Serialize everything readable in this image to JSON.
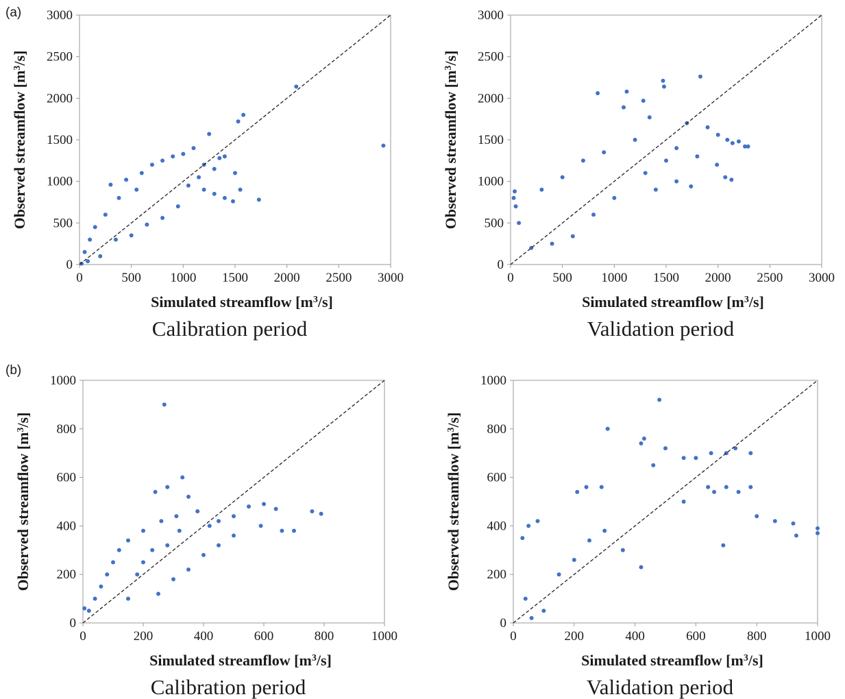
{
  "figure": {
    "groups": [
      {
        "label": "(a)"
      },
      {
        "label": "(b)"
      }
    ]
  },
  "colors": {
    "points": "#4472c4",
    "frame": "#9a9a9a",
    "diagonal": "#222222"
  },
  "chart_data": [
    {
      "type": "scatter",
      "group": "(a)",
      "period": "Calibration period",
      "xlabel": "Simulated streamflow [m³/s]",
      "ylabel": "Observed streamflow [m³/s]",
      "xlim": [
        0,
        3000
      ],
      "ylim": [
        0,
        3000
      ],
      "xticks": [
        0,
        500,
        1000,
        1500,
        2000,
        2500,
        3000
      ],
      "yticks": [
        0,
        500,
        1000,
        1500,
        2000,
        2500,
        3000
      ],
      "grid": false,
      "one_to_one_line": true,
      "points": [
        [
          2090,
          2140
        ],
        [
          1580,
          1800
        ],
        [
          1530,
          1720
        ],
        [
          2930,
          1430
        ],
        [
          1250,
          1570
        ],
        [
          1730,
          780
        ],
        [
          1550,
          900
        ],
        [
          1480,
          760
        ],
        [
          1350,
          1280
        ],
        [
          1000,
          1330
        ],
        [
          300,
          960
        ],
        [
          450,
          1020
        ],
        [
          600,
          1100
        ],
        [
          700,
          1200
        ],
        [
          800,
          1250
        ],
        [
          900,
          1300
        ],
        [
          1100,
          1400
        ],
        [
          1200,
          900
        ],
        [
          1300,
          850
        ],
        [
          1400,
          800
        ],
        [
          1150,
          1050
        ],
        [
          1050,
          950
        ],
        [
          1300,
          1150
        ],
        [
          1200,
          1200
        ],
        [
          1400,
          1300
        ],
        [
          1500,
          1100
        ],
        [
          150,
          450
        ],
        [
          100,
          300
        ],
        [
          50,
          150
        ],
        [
          200,
          100
        ],
        [
          350,
          300
        ],
        [
          500,
          350
        ],
        [
          650,
          480
        ],
        [
          800,
          560
        ],
        [
          950,
          700
        ],
        [
          20,
          10
        ],
        [
          80,
          40
        ],
        [
          250,
          600
        ],
        [
          380,
          800
        ],
        [
          550,
          900
        ]
      ]
    },
    {
      "type": "scatter",
      "group": "(a)",
      "period": "Validation period",
      "xlabel": "Simulated streamflow [m³/s]",
      "ylabel": "Observed streamflow [m³/s]",
      "xlim": [
        0,
        3000
      ],
      "ylim": [
        0,
        3000
      ],
      "xticks": [
        0,
        500,
        1000,
        1500,
        2000,
        2500,
        3000
      ],
      "yticks": [
        0,
        500,
        1000,
        1500,
        2000,
        2500,
        3000
      ],
      "grid": false,
      "one_to_one_line": true,
      "points": [
        [
          1830,
          2260
        ],
        [
          1470,
          2210
        ],
        [
          1480,
          2140
        ],
        [
          1120,
          2080
        ],
        [
          840,
          2060
        ],
        [
          1280,
          1970
        ],
        [
          1090,
          1890
        ],
        [
          1340,
          1770
        ],
        [
          1700,
          1700
        ],
        [
          1900,
          1650
        ],
        [
          2000,
          1560
        ],
        [
          2090,
          1500
        ],
        [
          2140,
          1460
        ],
        [
          2200,
          1480
        ],
        [
          2290,
          1420
        ],
        [
          2260,
          1420
        ],
        [
          2070,
          1050
        ],
        [
          2130,
          1020
        ],
        [
          1740,
          940
        ],
        [
          1990,
          1200
        ],
        [
          1800,
          1300
        ],
        [
          1600,
          1400
        ],
        [
          1500,
          1250
        ],
        [
          1300,
          1100
        ],
        [
          1200,
          1500
        ],
        [
          900,
          1350
        ],
        [
          700,
          1250
        ],
        [
          500,
          1050
        ],
        [
          300,
          900
        ],
        [
          40,
          880
        ],
        [
          30,
          800
        ],
        [
          50,
          700
        ],
        [
          80,
          500
        ],
        [
          200,
          200
        ],
        [
          400,
          250
        ],
        [
          600,
          340
        ],
        [
          800,
          600
        ],
        [
          1000,
          800
        ],
        [
          1400,
          900
        ],
        [
          1600,
          1000
        ]
      ]
    },
    {
      "type": "scatter",
      "group": "(b)",
      "period": "Calibration period",
      "xlabel": "Simulated streamflow [m³/s]",
      "ylabel": "Observed streamflow [m³/s]",
      "xlim": [
        0,
        1000
      ],
      "ylim": [
        0,
        1000
      ],
      "xticks": [
        0,
        200,
        400,
        600,
        800,
        1000
      ],
      "yticks": [
        0,
        200,
        400,
        600,
        800,
        1000
      ],
      "grid": false,
      "one_to_one_line": true,
      "points": [
        [
          270,
          900
        ],
        [
          330,
          600
        ],
        [
          280,
          560
        ],
        [
          350,
          520
        ],
        [
          240,
          540
        ],
        [
          790,
          450
        ],
        [
          760,
          460
        ],
        [
          700,
          380
        ],
        [
          600,
          490
        ],
        [
          550,
          480
        ],
        [
          500,
          440
        ],
        [
          640,
          470
        ],
        [
          660,
          380
        ],
        [
          590,
          400
        ],
        [
          450,
          420
        ],
        [
          420,
          400
        ],
        [
          380,
          460
        ],
        [
          310,
          440
        ],
        [
          260,
          420
        ],
        [
          200,
          380
        ],
        [
          150,
          340
        ],
        [
          120,
          300
        ],
        [
          100,
          250
        ],
        [
          80,
          200
        ],
        [
          60,
          150
        ],
        [
          40,
          100
        ],
        [
          20,
          50
        ],
        [
          5,
          60
        ],
        [
          150,
          100
        ],
        [
          250,
          120
        ],
        [
          300,
          180
        ],
        [
          350,
          220
        ],
        [
          400,
          280
        ],
        [
          450,
          320
        ],
        [
          500,
          360
        ],
        [
          200,
          250
        ],
        [
          280,
          320
        ],
        [
          180,
          200
        ],
        [
          320,
          380
        ],
        [
          230,
          300
        ]
      ]
    },
    {
      "type": "scatter",
      "group": "(b)",
      "period": "Validation period",
      "xlabel": "Simulated streamflow [m³/s]",
      "ylabel": "Observed streamflow [m³/s]",
      "xlim": [
        0,
        1000
      ],
      "ylim": [
        0,
        1000
      ],
      "xticks": [
        0,
        200,
        400,
        600,
        800,
        1000
      ],
      "yticks": [
        0,
        200,
        400,
        600,
        800,
        1000
      ],
      "grid": false,
      "one_to_one_line": true,
      "points": [
        [
          480,
          920
        ],
        [
          310,
          800
        ],
        [
          430,
          760
        ],
        [
          420,
          740
        ],
        [
          500,
          720
        ],
        [
          650,
          700
        ],
        [
          700,
          700
        ],
        [
          730,
          720
        ],
        [
          780,
          700
        ],
        [
          560,
          680
        ],
        [
          600,
          680
        ],
        [
          460,
          650
        ],
        [
          640,
          560
        ],
        [
          700,
          560
        ],
        [
          780,
          560
        ],
        [
          740,
          540
        ],
        [
          660,
          540
        ],
        [
          560,
          500
        ],
        [
          800,
          440
        ],
        [
          920,
          410
        ],
        [
          1000,
          390
        ],
        [
          1000,
          370
        ],
        [
          930,
          360
        ],
        [
          860,
          420
        ],
        [
          690,
          320
        ],
        [
          420,
          230
        ],
        [
          360,
          300
        ],
        [
          290,
          560
        ],
        [
          240,
          560
        ],
        [
          210,
          540
        ],
        [
          80,
          420
        ],
        [
          50,
          400
        ],
        [
          30,
          350
        ],
        [
          40,
          100
        ],
        [
          100,
          50
        ],
        [
          60,
          20
        ],
        [
          200,
          260
        ],
        [
          300,
          380
        ],
        [
          250,
          340
        ],
        [
          150,
          200
        ]
      ]
    }
  ]
}
